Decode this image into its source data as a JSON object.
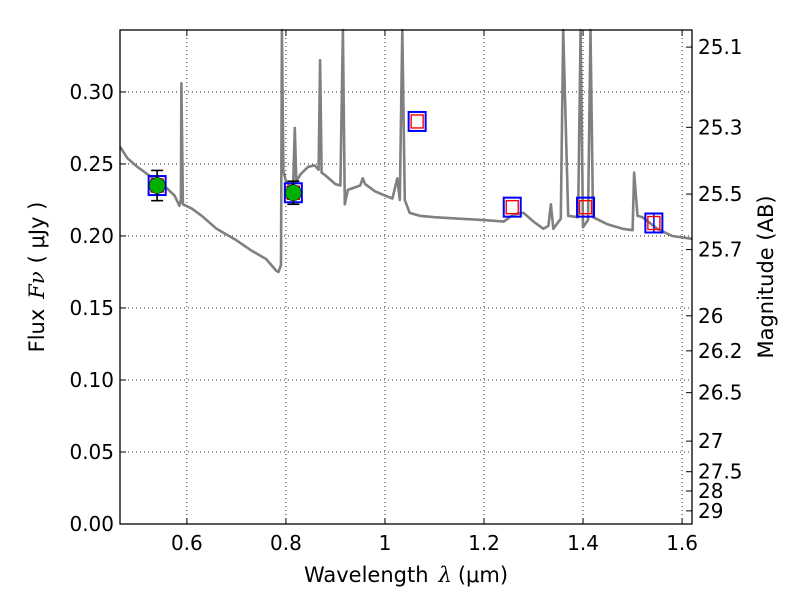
{
  "chart_data": {
    "type": "scatter",
    "title": "",
    "xlabel": "Wavelength",
    "xlabel_symbol": "λ",
    "xlabel_unit": "(μm)",
    "ylabel": "Flux",
    "ylabel_symbol": "Fν",
    "ylabel_unit": "( μJy )",
    "y2label": "Magnitude (AB)",
    "xlim": [
      0.465,
      1.62
    ],
    "ylim": [
      0.0,
      0.343
    ],
    "grid": true,
    "colors": {
      "model": "#808080",
      "observed_fill": "#00b000",
      "observed_err": "#000000",
      "box_outer": "#0000ff",
      "box_inner": "#ff0000"
    },
    "x_ticks": [
      {
        "value": 0.6,
        "label": "0.6"
      },
      {
        "value": 0.8,
        "label": "0.8"
      },
      {
        "value": 1.0,
        "label": "1"
      },
      {
        "value": 1.2,
        "label": "1.2"
      },
      {
        "value": 1.4,
        "label": "1.4"
      },
      {
        "value": 1.6,
        "label": "1.6"
      }
    ],
    "y_ticks": [
      {
        "value": 0.0,
        "label": "0.00"
      },
      {
        "value": 0.05,
        "label": "0.05"
      },
      {
        "value": 0.1,
        "label": "0.10"
      },
      {
        "value": 0.15,
        "label": "0.15"
      },
      {
        "value": 0.2,
        "label": "0.20"
      },
      {
        "value": 0.25,
        "label": "0.25"
      },
      {
        "value": 0.3,
        "label": "0.30"
      }
    ],
    "mag_ticks": [
      {
        "mag": 25.1,
        "label": "25.1"
      },
      {
        "mag": 25.3,
        "label": "25.3"
      },
      {
        "mag": 25.5,
        "label": "25.5"
      },
      {
        "mag": 25.7,
        "label": "25.7"
      },
      {
        "mag": 26,
        "label": "26"
      },
      {
        "mag": 26.2,
        "label": "26.2"
      },
      {
        "mag": 26.5,
        "label": "26.5"
      },
      {
        "mag": 27,
        "label": "27"
      },
      {
        "mag": 27.5,
        "label": "27.5"
      },
      {
        "mag": 28,
        "label": "28"
      },
      {
        "mag": 29,
        "label": "29"
      }
    ],
    "series": [
      {
        "name": "model_sed",
        "kind": "line",
        "points": [
          [
            0.465,
            0.262
          ],
          [
            0.48,
            0.254
          ],
          [
            0.5,
            0.248
          ],
          [
            0.52,
            0.243
          ],
          [
            0.54,
            0.238
          ],
          [
            0.56,
            0.233
          ],
          [
            0.575,
            0.228
          ],
          [
            0.585,
            0.221
          ],
          [
            0.588,
            0.225
          ],
          [
            0.589,
            0.306
          ],
          [
            0.592,
            0.222
          ],
          [
            0.61,
            0.219
          ],
          [
            0.63,
            0.214
          ],
          [
            0.66,
            0.205
          ],
          [
            0.7,
            0.197
          ],
          [
            0.73,
            0.19
          ],
          [
            0.76,
            0.184
          ],
          [
            0.78,
            0.176
          ],
          [
            0.785,
            0.175
          ],
          [
            0.79,
            0.18
          ],
          [
            0.792,
            0.343
          ],
          [
            0.795,
            0.245
          ],
          [
            0.8,
            0.238
          ],
          [
            0.81,
            0.234
          ],
          [
            0.815,
            0.238
          ],
          [
            0.818,
            0.275
          ],
          [
            0.821,
            0.238
          ],
          [
            0.83,
            0.243
          ],
          [
            0.845,
            0.248
          ],
          [
            0.858,
            0.249
          ],
          [
            0.866,
            0.246
          ],
          [
            0.869,
            0.322
          ],
          [
            0.872,
            0.244
          ],
          [
            0.88,
            0.242
          ],
          [
            0.9,
            0.236
          ],
          [
            0.91,
            0.235
          ],
          [
            0.915,
            0.343
          ],
          [
            0.919,
            0.222
          ],
          [
            0.925,
            0.232
          ],
          [
            0.95,
            0.235
          ],
          [
            0.955,
            0.24
          ],
          [
            0.96,
            0.236
          ],
          [
            0.98,
            0.231
          ],
          [
            1.0,
            0.228
          ],
          [
            1.015,
            0.226
          ],
          [
            1.025,
            0.24
          ],
          [
            1.03,
            0.225
          ],
          [
            1.035,
            0.343
          ],
          [
            1.04,
            0.225
          ],
          [
            1.05,
            0.216
          ],
          [
            1.07,
            0.214
          ],
          [
            1.1,
            0.213
          ],
          [
            1.15,
            0.212
          ],
          [
            1.2,
            0.211
          ],
          [
            1.24,
            0.21
          ],
          [
            1.26,
            0.215
          ],
          [
            1.28,
            0.216
          ],
          [
            1.3,
            0.21
          ],
          [
            1.32,
            0.205
          ],
          [
            1.33,
            0.207
          ],
          [
            1.335,
            0.222
          ],
          [
            1.34,
            0.205
          ],
          [
            1.355,
            0.212
          ],
          [
            1.36,
            0.343
          ],
          [
            1.37,
            0.214
          ],
          [
            1.39,
            0.213
          ],
          [
            1.395,
            0.343
          ],
          [
            1.4,
            0.206
          ],
          [
            1.41,
            0.211
          ],
          [
            1.415,
            0.343
          ],
          [
            1.42,
            0.213
          ],
          [
            1.45,
            0.208
          ],
          [
            1.48,
            0.205
          ],
          [
            1.5,
            0.204
          ],
          [
            1.503,
            0.244
          ],
          [
            1.51,
            0.214
          ],
          [
            1.52,
            0.213
          ],
          [
            1.55,
            0.205
          ],
          [
            1.58,
            0.2
          ],
          [
            1.62,
            0.198
          ]
        ]
      },
      {
        "name": "observed_flux",
        "kind": "scatter",
        "points": [
          {
            "x": 0.54,
            "y": 0.235,
            "err": 0.0105
          },
          {
            "x": 0.815,
            "y": 0.23,
            "err": 0.008
          }
        ]
      },
      {
        "name": "model_photometry",
        "kind": "scatter",
        "points": [
          {
            "x": 0.54,
            "y": 0.235,
            "err": 0
          },
          {
            "x": 0.815,
            "y": 0.23,
            "err": 0
          },
          {
            "x": 1.065,
            "y": 0.2795,
            "err": 0
          },
          {
            "x": 1.257,
            "y": 0.22,
            "err": 0
          },
          {
            "x": 1.405,
            "y": 0.22,
            "err": 0
          },
          {
            "x": 1.543,
            "y": 0.209,
            "err": 0.006
          }
        ]
      }
    ]
  }
}
